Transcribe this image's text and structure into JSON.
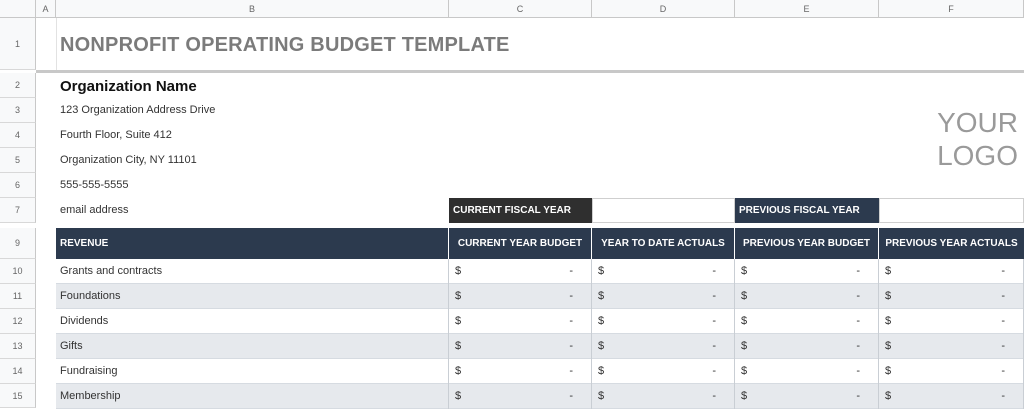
{
  "columns": [
    "A",
    "B",
    "C",
    "D",
    "E",
    "F"
  ],
  "rows": [
    "1",
    "2",
    "3",
    "4",
    "5",
    "6",
    "7",
    "9",
    "10",
    "11",
    "12",
    "13",
    "14",
    "15"
  ],
  "title": "NONPROFIT OPERATING BUDGET TEMPLATE",
  "organization": {
    "name": "Organization Name",
    "address1": "123 Organization Address Drive",
    "address2": "Fourth Floor, Suite 412",
    "city": "Organization City, NY  11101",
    "phone": "555-555-5555",
    "email": "email address"
  },
  "logo": {
    "line1": "YOUR",
    "line2": "LOGO"
  },
  "fiscal": {
    "current_label": "CURRENT FISCAL YEAR",
    "current_value": "",
    "previous_label": "PREVIOUS FISCAL YEAR",
    "previous_value": ""
  },
  "table": {
    "headers": [
      "REVENUE",
      "CURRENT YEAR BUDGET",
      "YEAR TO DATE ACTUALS",
      "PREVIOUS YEAR BUDGET",
      "PREVIOUS YEAR ACTUALS"
    ],
    "rows": [
      {
        "label": "Grants and contracts",
        "values": [
          "$",
          "-",
          "$",
          "-",
          "$",
          "-",
          "$",
          "-"
        ]
      },
      {
        "label": "Foundations",
        "values": [
          "$",
          "-",
          "$",
          "-",
          "$",
          "-",
          "$",
          "-"
        ]
      },
      {
        "label": "Dividends",
        "values": [
          "$",
          "-",
          "$",
          "-",
          "$",
          "-",
          "$",
          "-"
        ]
      },
      {
        "label": "Gifts",
        "values": [
          "$",
          "-",
          "$",
          "-",
          "$",
          "-",
          "$",
          "-"
        ]
      },
      {
        "label": "Fundraising",
        "values": [
          "$",
          "-",
          "$",
          "-",
          "$",
          "-",
          "$",
          "-"
        ]
      },
      {
        "label": "Membership",
        "values": [
          "$",
          "-",
          "$",
          "-",
          "$",
          "-",
          "$",
          "-"
        ]
      }
    ]
  },
  "colors": {
    "header_navy": "#2c3a4e",
    "header_dark": "#2f2f2f",
    "alt_row": "#e6e9ed",
    "title_gray": "#7b7b7b"
  }
}
